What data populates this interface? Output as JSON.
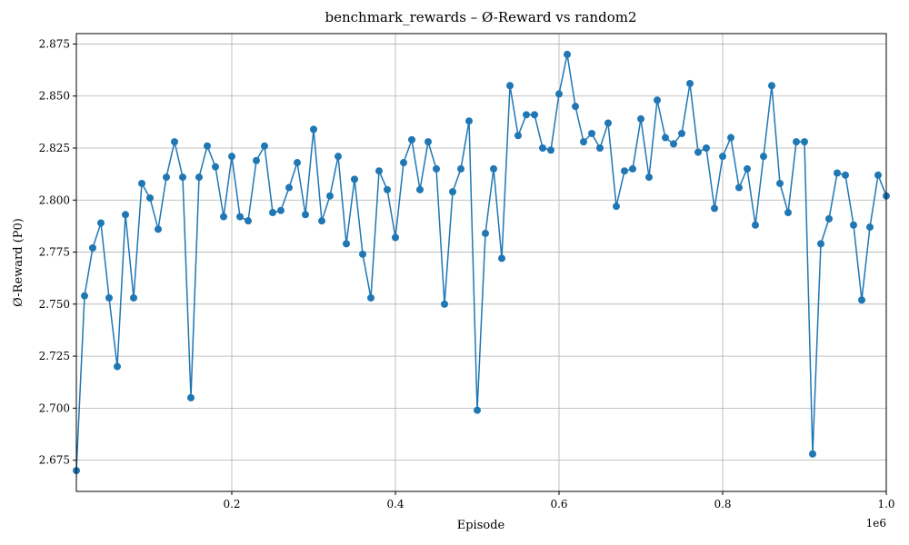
{
  "chart_data": {
    "type": "line",
    "title": "benchmark_rewards – Ø-Reward vs random2",
    "x_label": "Episode",
    "y_label": "Ø-Reward (P0)",
    "x_offset_label": "1e6",
    "x": [
      10000,
      20000,
      30000,
      40000,
      50000,
      60000,
      70000,
      80000,
      90000,
      100000,
      110000,
      120000,
      130000,
      140000,
      150000,
      160000,
      170000,
      180000,
      190000,
      200000,
      210000,
      220000,
      230000,
      240000,
      250000,
      260000,
      270000,
      280000,
      290000,
      300000,
      310000,
      320000,
      330000,
      340000,
      350000,
      360000,
      370000,
      380000,
      390000,
      400000,
      410000,
      420000,
      430000,
      440000,
      450000,
      460000,
      470000,
      480000,
      490000,
      500000,
      510000,
      520000,
      530000,
      540000,
      550000,
      560000,
      570000,
      580000,
      590000,
      600000,
      610000,
      620000,
      630000,
      640000,
      650000,
      660000,
      670000,
      680000,
      690000,
      700000,
      710000,
      720000,
      730000,
      740000,
      750000,
      760000,
      770000,
      780000,
      790000,
      800000,
      810000,
      820000,
      830000,
      840000,
      850000,
      860000,
      870000,
      880000,
      890000,
      900000,
      910000,
      920000,
      930000,
      940000,
      950000,
      960000,
      970000,
      980000,
      990000,
      1000000
    ],
    "series": [
      {
        "name": "Ø-Reward (P0)",
        "color": "#1f77b4",
        "values": [
          2.67,
          2.754,
          2.777,
          2.789,
          2.753,
          2.72,
          2.793,
          2.753,
          2.808,
          2.801,
          2.786,
          2.811,
          2.828,
          2.811,
          2.705,
          2.811,
          2.826,
          2.816,
          2.792,
          2.821,
          2.792,
          2.79,
          2.819,
          2.826,
          2.794,
          2.795,
          2.806,
          2.818,
          2.793,
          2.834,
          2.79,
          2.802,
          2.821,
          2.779,
          2.81,
          2.774,
          2.753,
          2.814,
          2.805,
          2.782,
          2.818,
          2.829,
          2.805,
          2.828,
          2.815,
          2.75,
          2.804,
          2.815,
          2.838,
          2.699,
          2.784,
          2.815,
          2.772,
          2.855,
          2.831,
          2.841,
          2.841,
          2.825,
          2.824,
          2.851,
          2.87,
          2.845,
          2.828,
          2.832,
          2.825,
          2.837,
          2.797,
          2.814,
          2.815,
          2.839,
          2.811,
          2.848,
          2.83,
          2.827,
          2.832,
          2.856,
          2.823,
          2.825,
          2.796,
          2.821,
          2.83,
          2.806,
          2.815,
          2.788,
          2.821,
          2.855,
          2.808,
          2.794,
          2.828,
          2.828,
          2.678,
          2.779,
          2.791,
          2.813,
          2.812,
          2.788,
          2.752,
          2.787,
          2.812,
          2.802
        ]
      }
    ],
    "xlim": [
      10000,
      1000000
    ],
    "ylim": [
      2.66,
      2.88
    ],
    "xticks": [
      {
        "value": 200000,
        "label": "0.2"
      },
      {
        "value": 400000,
        "label": "0.4"
      },
      {
        "value": 600000,
        "label": "0.6"
      },
      {
        "value": 800000,
        "label": "0.8"
      },
      {
        "value": 1000000,
        "label": "1.0"
      }
    ],
    "yticks": [
      2.675,
      {
        "value": 2.7,
        "label": "2.700"
      },
      2.725,
      {
        "value": 2.75,
        "label": "2.750"
      },
      2.775,
      {
        "value": 2.8,
        "label": "2.800"
      },
      2.825,
      {
        "value": 2.85,
        "label": "2.850"
      },
      2.875
    ],
    "grid": true
  }
}
